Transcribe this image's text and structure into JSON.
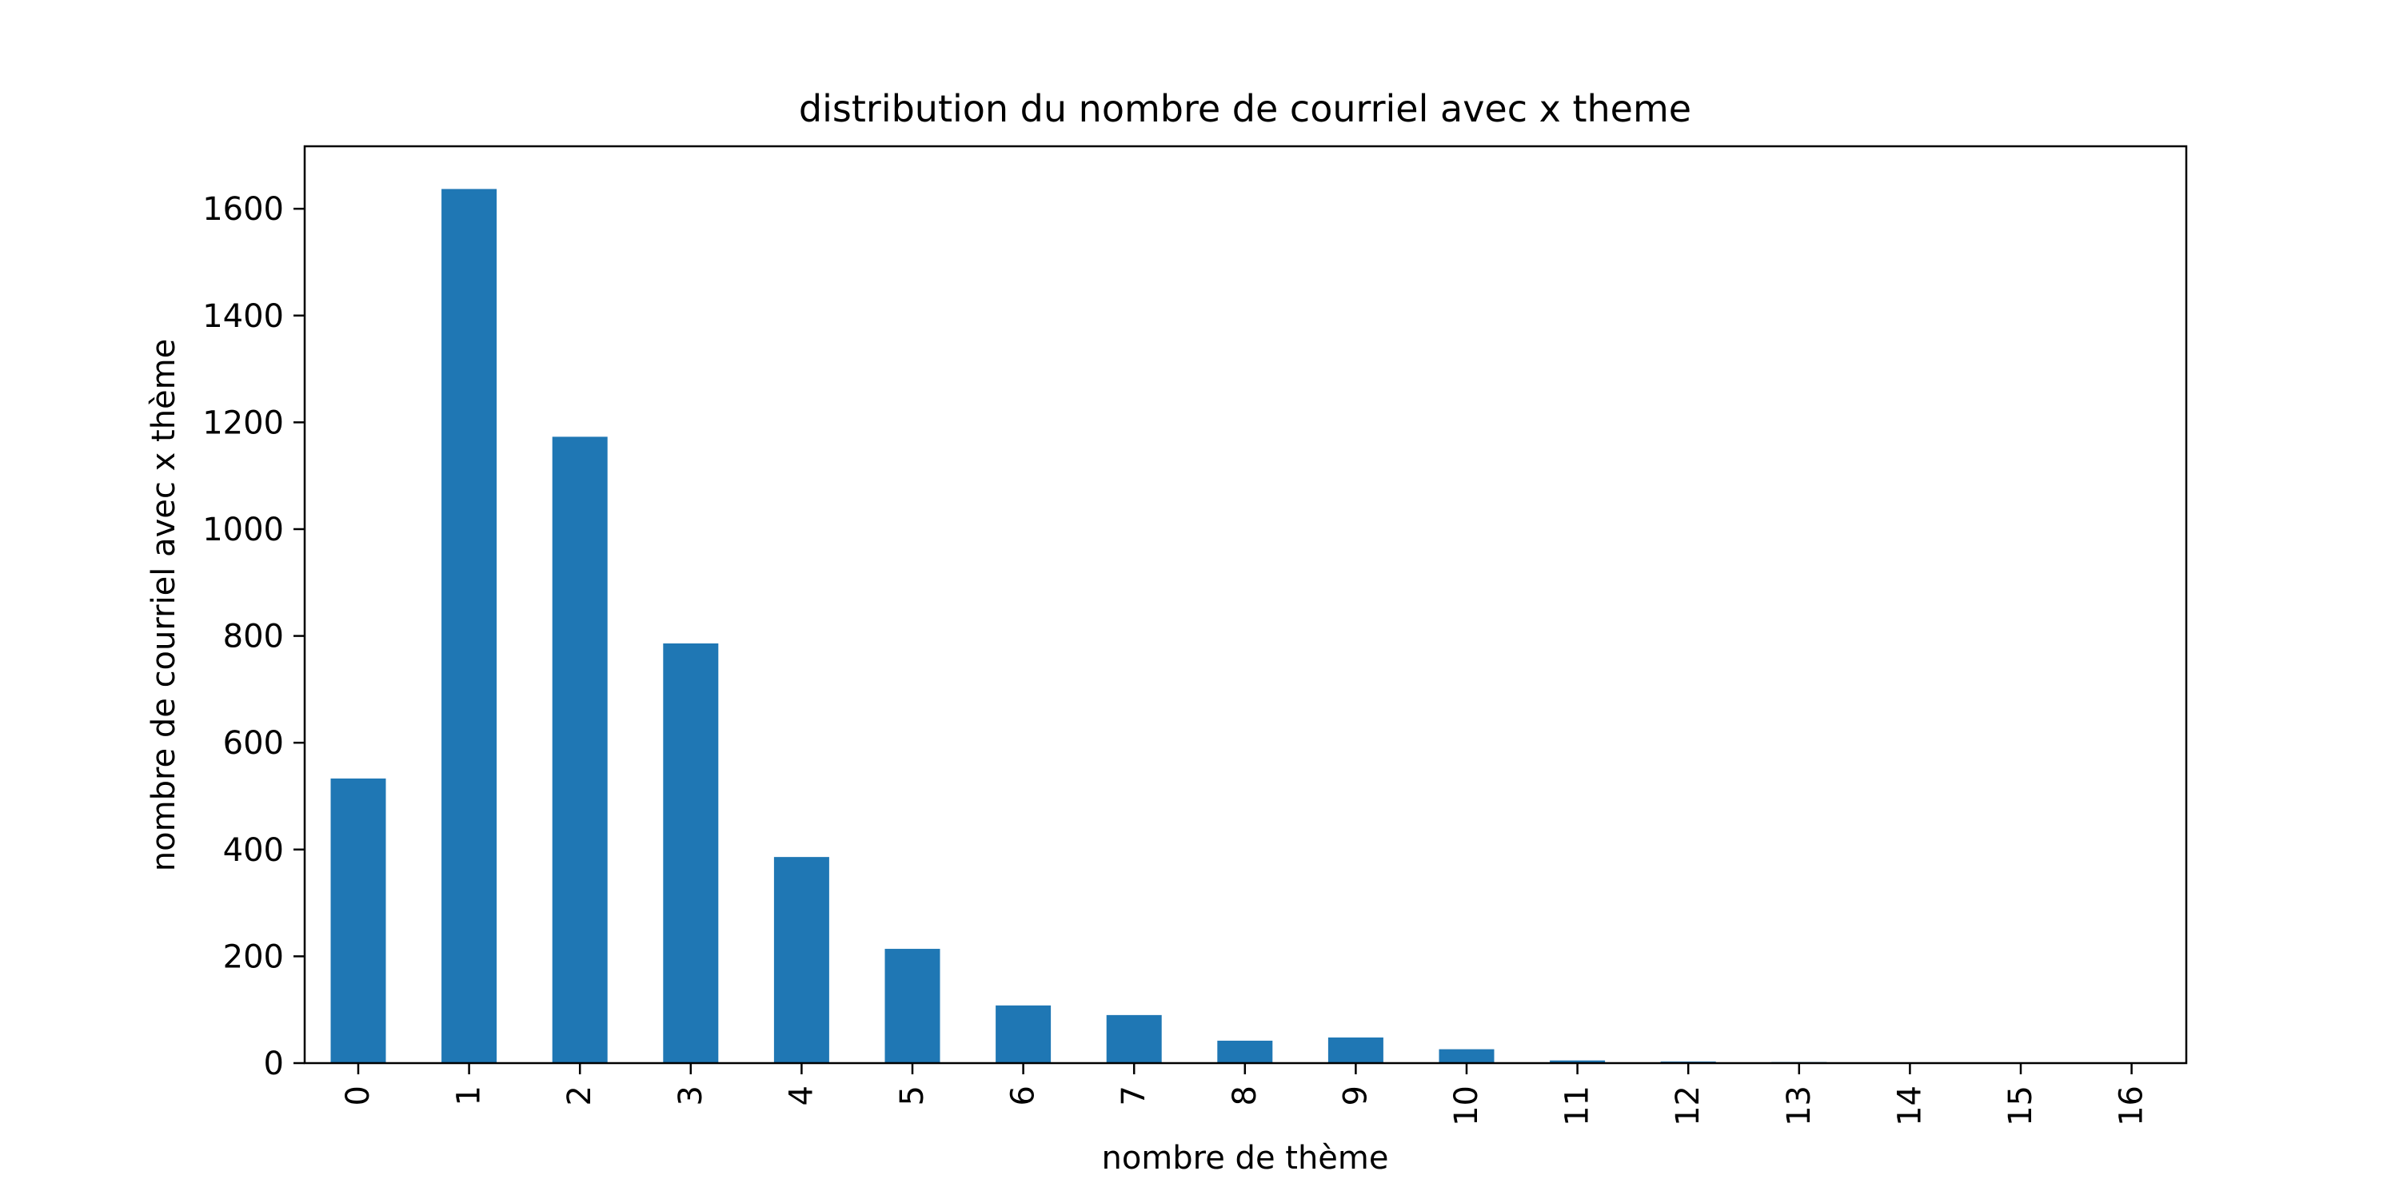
{
  "chart_data": {
    "type": "bar",
    "title": "distribution du nombre de courriel avec x theme",
    "xlabel": "nombre de thème",
    "ylabel": "nombre de courriel avec x thème",
    "categories": [
      "0",
      "1",
      "2",
      "3",
      "4",
      "5",
      "6",
      "7",
      "8",
      "9",
      "10",
      "11",
      "12",
      "13",
      "14",
      "15",
      "16"
    ],
    "values": [
      533,
      1637,
      1173,
      786,
      386,
      214,
      108,
      90,
      42,
      48,
      26,
      5,
      3,
      2,
      1,
      1,
      1
    ],
    "ylim": [
      0,
      1717
    ],
    "yticks": [
      0,
      200,
      400,
      600,
      800,
      1000,
      1200,
      1400,
      1600
    ],
    "xtick_rotation": "vertical",
    "grid": false,
    "legend": "none",
    "bar_color": "#1f77b4"
  }
}
